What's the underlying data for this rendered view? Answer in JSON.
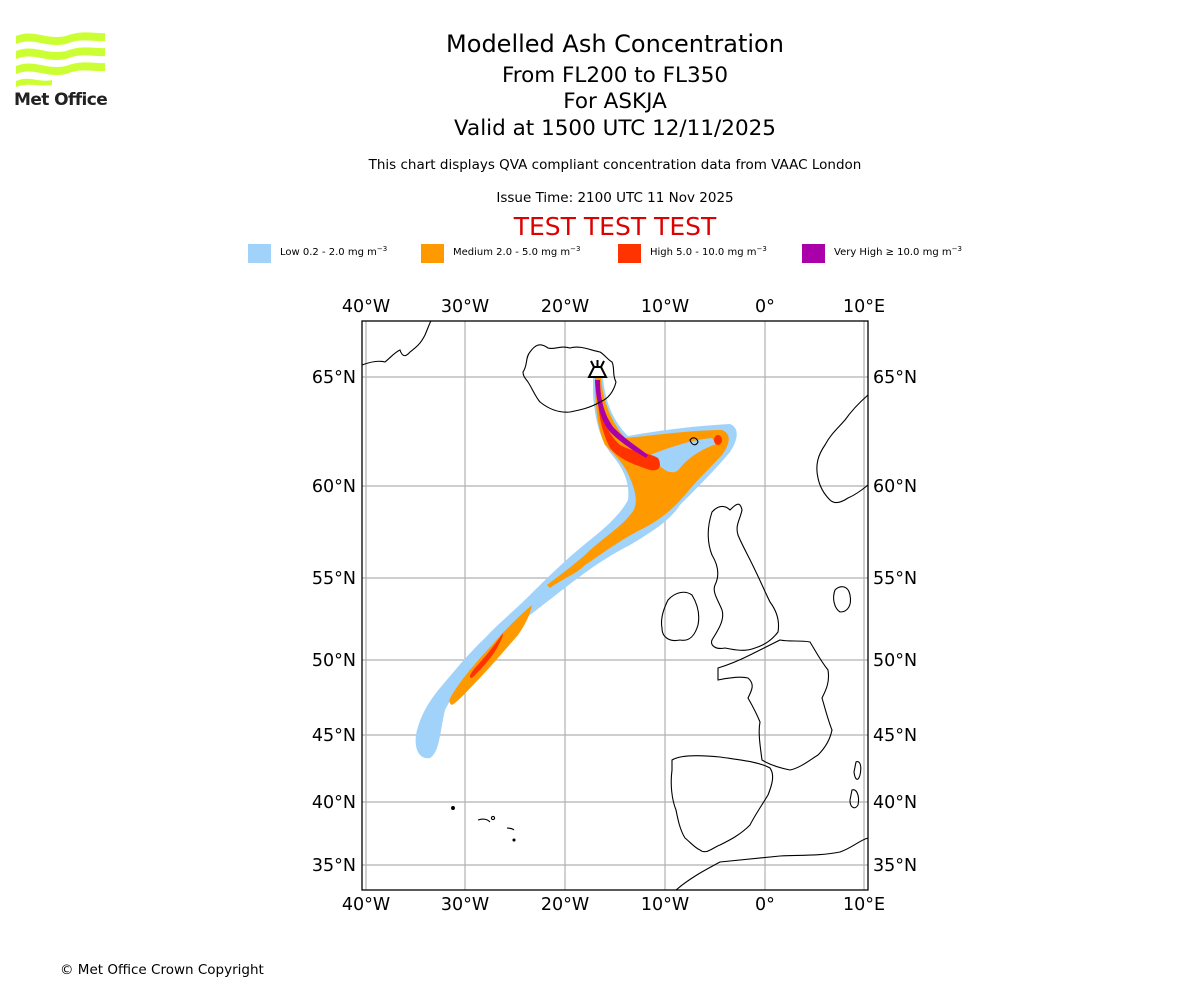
{
  "logo": {
    "text": "Met Office",
    "color": "#ccff33"
  },
  "header": {
    "title": "Modelled Ash Concentration",
    "levels": "From FL200 to FL350",
    "volcano": "For ASKJA",
    "valid": "Valid at 1500 UTC 12/11/2025",
    "description": "This chart displays QVA compliant concentration data from VAAC London",
    "issue_time": "Issue Time: 2100 UTC 11 Nov 2025",
    "test_banner": "TEST TEST TEST",
    "test_color": "#dd0000"
  },
  "legend": [
    {
      "name": "low",
      "label": "Low 0.2 - 2.0 mg m",
      "exp": "−3",
      "color": "#a0d2fa"
    },
    {
      "name": "medium",
      "label": "Medium 2.0 - 5.0 mg m",
      "exp": "−3",
      "color": "#ff9900"
    },
    {
      "name": "high",
      "label": "High 5.0 - 10.0 mg m",
      "exp": "−3",
      "color": "#ff3300"
    },
    {
      "name": "very-high",
      "label": "Very High  ≥  10.0 mg m",
      "exp": "−3",
      "color": "#aa00aa"
    }
  ],
  "map": {
    "lon_labels": [
      "40°W",
      "30°W",
      "20°W",
      "10°W",
      "0°",
      "10°E"
    ],
    "lat_labels": [
      "65°N",
      "60°N",
      "55°N",
      "50°N",
      "45°N",
      "40°N",
      "35°N"
    ],
    "volcano_icon": "volcano-icon"
  },
  "footer": {
    "copyright": "© Met Office Crown Copyright"
  }
}
